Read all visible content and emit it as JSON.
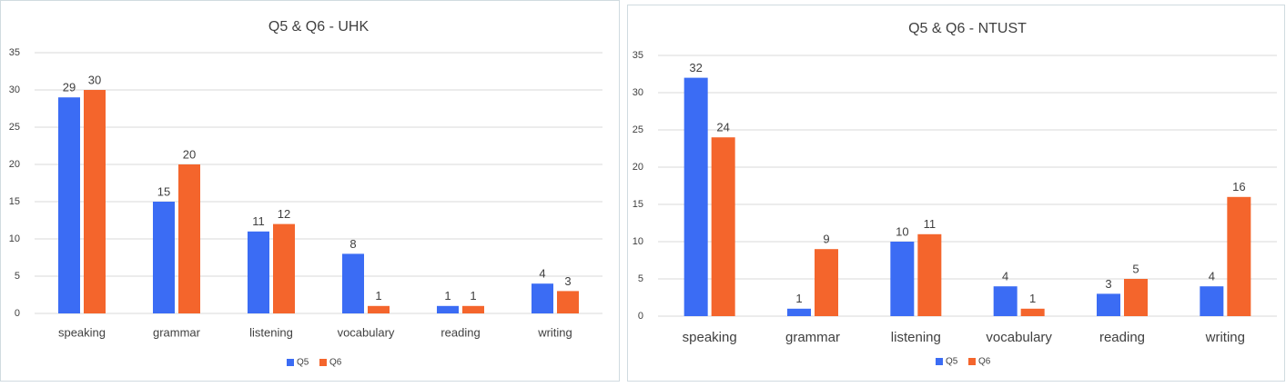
{
  "chart_data": [
    {
      "type": "bar",
      "title": "Q5 & Q6 - UHK",
      "categories": [
        "speaking",
        "grammar",
        "listening",
        "vocabulary",
        "reading",
        "writing"
      ],
      "series": [
        {
          "name": "Q5",
          "color": "#3b6cf4",
          "values": [
            29,
            15,
            11,
            8,
            1,
            4
          ]
        },
        {
          "name": "Q6",
          "color": "#f4652c",
          "values": [
            30,
            20,
            12,
            1,
            1,
            3
          ]
        }
      ],
      "ylim": [
        0,
        35
      ],
      "yticks": [
        0,
        5,
        10,
        15,
        20,
        25,
        30,
        35
      ],
      "grid": true,
      "legend": "bottom"
    },
    {
      "type": "bar",
      "title": "Q5 & Q6 - NTUST",
      "categories": [
        "speaking",
        "grammar",
        "listening",
        "vocabulary",
        "reading",
        "writing"
      ],
      "series": [
        {
          "name": "Q5",
          "color": "#3b6cf4",
          "values": [
            32,
            1,
            10,
            4,
            3,
            4
          ]
        },
        {
          "name": "Q6",
          "color": "#f4652c",
          "values": [
            24,
            9,
            11,
            1,
            5,
            16
          ]
        }
      ],
      "ylim": [
        0,
        35
      ],
      "yticks": [
        0,
        5,
        10,
        15,
        20,
        25,
        30,
        35
      ],
      "grid": true,
      "legend": "bottom"
    }
  ]
}
